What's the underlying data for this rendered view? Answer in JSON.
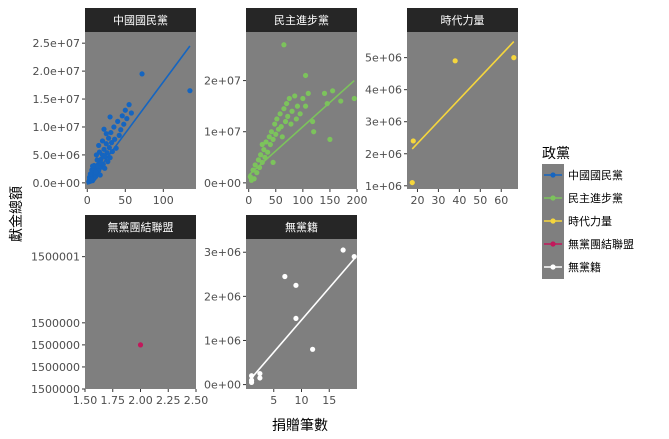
{
  "axis": {
    "xlabel": "捐贈筆數",
    "ylabel": "獻金總額"
  },
  "legend": {
    "title": "政黨",
    "position": "right"
  },
  "colors": {
    "panel_bg": "#7f7f7f",
    "strip_bg": "#262626",
    "中國國民黨": "#1565c0",
    "民主進步黨": "#7cc35c",
    "時代力量": "#f5d63d",
    "無黨團結聯盟": "#c2185b",
    "無黨籍": "#ffffff"
  },
  "chart_data": [
    {
      "type": "scatter",
      "title": "中國國民黨",
      "series": [
        {
          "name": "中國國民黨"
        }
      ],
      "xlim": [
        -3,
        143
      ],
      "ylim": [
        -1100000,
        27000000
      ],
      "xticks": [
        {
          "v": 0,
          "label": "0"
        },
        {
          "v": 50,
          "label": "50"
        },
        {
          "v": 100,
          "label": "100"
        }
      ],
      "yticks": [
        {
          "v": 0,
          "label": "0.0e+00"
        },
        {
          "v": 5000000,
          "label": "5.0e+06"
        },
        {
          "v": 10000000,
          "label": "1.0e+07"
        },
        {
          "v": 15000000,
          "label": "1.5e+07"
        },
        {
          "v": 20000000,
          "label": "2.0e+07"
        },
        {
          "v": 25000000,
          "label": "2.5e+07"
        }
      ],
      "trend": [
        [
          0,
          -300000
        ],
        [
          135,
          24500000
        ]
      ],
      "points": [
        [
          2,
          200000
        ],
        [
          3,
          600000
        ],
        [
          4,
          300000
        ],
        [
          5,
          900000
        ],
        [
          6,
          1200000
        ],
        [
          7,
          400000
        ],
        [
          8,
          1500000
        ],
        [
          9,
          800000
        ],
        [
          10,
          2000000
        ],
        [
          11,
          1100000
        ],
        [
          12,
          2500000
        ],
        [
          13,
          1700000
        ],
        [
          14,
          3200000
        ],
        [
          15,
          2200000
        ],
        [
          16,
          3700000
        ],
        [
          17,
          1400000
        ],
        [
          18,
          4200000
        ],
        [
          19,
          2800000
        ],
        [
          20,
          5000000
        ],
        [
          21,
          3300000
        ],
        [
          22,
          6000000
        ],
        [
          23,
          2600000
        ],
        [
          24,
          4600000
        ],
        [
          25,
          7000000
        ],
        [
          26,
          5400000
        ],
        [
          27,
          3800000
        ],
        [
          28,
          8000000
        ],
        [
          29,
          6300000
        ],
        [
          30,
          4500000
        ],
        [
          31,
          9000000
        ],
        [
          32,
          7200000
        ],
        [
          33,
          5600000
        ],
        [
          35,
          10000000
        ],
        [
          36,
          7800000
        ],
        [
          38,
          6200000
        ],
        [
          40,
          11000000
        ],
        [
          42,
          8500000
        ],
        [
          44,
          9500000
        ],
        [
          46,
          12000000
        ],
        [
          48,
          10500000
        ],
        [
          50,
          13000000
        ],
        [
          52,
          11500000
        ],
        [
          55,
          14000000
        ],
        [
          58,
          12500000
        ],
        [
          72,
          19500000
        ],
        [
          135,
          16500000
        ],
        [
          3,
          1000000
        ],
        [
          5,
          500000
        ],
        [
          6,
          2300000
        ],
        [
          8,
          2700000
        ],
        [
          9,
          3100000
        ],
        [
          11,
          1900000
        ],
        [
          13,
          4100000
        ],
        [
          14,
          3000000
        ],
        [
          16,
          5500000
        ],
        [
          18,
          3500000
        ],
        [
          20,
          7500000
        ],
        [
          23,
          4800000
        ],
        [
          25,
          8800000
        ],
        [
          30,
          11800000
        ],
        [
          12,
          5000000
        ],
        [
          7,
          3000000
        ],
        [
          4,
          1600000
        ],
        [
          15,
          6700000
        ],
        [
          22,
          9600000
        ]
      ]
    },
    {
      "type": "scatter",
      "title": "民主進步黨",
      "series": [
        {
          "name": "民主進步黨"
        }
      ],
      "xlim": [
        -5,
        200
      ],
      "ylim": [
        -1200000,
        29500000
      ],
      "xticks": [
        {
          "v": 0,
          "label": "0"
        },
        {
          "v": 50,
          "label": "50"
        },
        {
          "v": 100,
          "label": "100"
        },
        {
          "v": 150,
          "label": "150"
        },
        {
          "v": 200,
          "label": "200"
        }
      ],
      "yticks": [
        {
          "v": 0,
          "label": "0e+00"
        },
        {
          "v": 10000000,
          "label": "1e+07"
        },
        {
          "v": 20000000,
          "label": "2e+07"
        }
      ],
      "trend": [
        [
          0,
          1500000
        ],
        [
          195,
          20000000
        ]
      ],
      "points": [
        [
          3,
          1200000
        ],
        [
          5,
          500000
        ],
        [
          8,
          2500000
        ],
        [
          10,
          800000
        ],
        [
          12,
          3500000
        ],
        [
          15,
          2000000
        ],
        [
          18,
          4500000
        ],
        [
          20,
          3000000
        ],
        [
          22,
          5500000
        ],
        [
          25,
          4000000
        ],
        [
          28,
          6500000
        ],
        [
          30,
          5000000
        ],
        [
          32,
          8000000
        ],
        [
          35,
          6000000
        ],
        [
          38,
          9000000
        ],
        [
          40,
          7500000
        ],
        [
          42,
          10000000
        ],
        [
          45,
          8500000
        ],
        [
          48,
          11500000
        ],
        [
          50,
          9500000
        ],
        [
          52,
          12500000
        ],
        [
          55,
          10500000
        ],
        [
          58,
          13500000
        ],
        [
          60,
          11000000
        ],
        [
          62,
          9000000
        ],
        [
          65,
          14500000
        ],
        [
          68,
          12000000
        ],
        [
          70,
          15500000
        ],
        [
          72,
          13000000
        ],
        [
          75,
          16500000
        ],
        [
          78,
          11500000
        ],
        [
          80,
          14000000
        ],
        [
          85,
          17000000
        ],
        [
          88,
          12500000
        ],
        [
          90,
          15000000
        ],
        [
          95,
          13500000
        ],
        [
          100,
          16500000
        ],
        [
          105,
          15000000
        ],
        [
          110,
          17500000
        ],
        [
          118,
          12000000
        ],
        [
          120,
          10000000
        ],
        [
          140,
          17500000
        ],
        [
          145,
          15500000
        ],
        [
          150,
          8500000
        ],
        [
          155,
          18000000
        ],
        [
          170,
          16000000
        ],
        [
          195,
          16500000
        ],
        [
          105,
          21000000
        ],
        [
          65,
          27000000
        ],
        [
          25,
          7500000
        ],
        [
          45,
          4000000
        ]
      ]
    },
    {
      "type": "scatter",
      "title": "時代力量",
      "series": [
        {
          "name": "時代力量"
        }
      ],
      "xlim": [
        15,
        68
      ],
      "ylim": [
        900000,
        5800000
      ],
      "xticks": [
        {
          "v": 20,
          "label": "20"
        },
        {
          "v": 30,
          "label": "30"
        },
        {
          "v": 40,
          "label": "40"
        },
        {
          "v": 50,
          "label": "50"
        },
        {
          "v": 60,
          "label": "60"
        }
      ],
      "yticks": [
        {
          "v": 1000000,
          "label": "1e+06"
        },
        {
          "v": 2000000,
          "label": "2e+06"
        },
        {
          "v": 3000000,
          "label": "3e+06"
        },
        {
          "v": 4000000,
          "label": "4e+06"
        },
        {
          "v": 5000000,
          "label": "5e+06"
        }
      ],
      "trend": [
        [
          17.5,
          2150000
        ],
        [
          66,
          5500000
        ]
      ],
      "points": [
        [
          17.5,
          1100000
        ],
        [
          18,
          2400000
        ],
        [
          38,
          4900000
        ],
        [
          66,
          5000000
        ]
      ]
    },
    {
      "type": "scatter",
      "title": "無黨團結聯盟",
      "series": [
        {
          "name": "無黨團結聯盟"
        }
      ],
      "xlim": [
        1.5,
        2.5
      ],
      "ylim": [
        1499999.5,
        1500001.2
      ],
      "xticks": [
        {
          "v": 1.5,
          "label": "1.50"
        },
        {
          "v": 1.75,
          "label": "1.75"
        },
        {
          "v": 2.0,
          "label": "2.00"
        },
        {
          "v": 2.25,
          "label": "2.25"
        },
        {
          "v": 2.5,
          "label": "2.50"
        }
      ],
      "yticks": [
        {
          "v": 1499999.5,
          "label": "1500000"
        },
        {
          "v": 1499999.75,
          "label": "1500000"
        },
        {
          "v": 1500000.0,
          "label": "1500000"
        },
        {
          "v": 1500000.25,
          "label": "1500000"
        },
        {
          "v": 1500001.0,
          "label": "1500001"
        }
      ],
      "trend": [],
      "points": [
        [
          2.0,
          1500000.0
        ]
      ]
    },
    {
      "type": "scatter",
      "title": "無黨籍",
      "series": [
        {
          "name": "無黨籍"
        }
      ],
      "xlim": [
        0,
        20
      ],
      "ylim": [
        -100000,
        3300000
      ],
      "xticks": [
        {
          "v": 5,
          "label": "5"
        },
        {
          "v": 10,
          "label": "10"
        },
        {
          "v": 15,
          "label": "15"
        }
      ],
      "yticks": [
        {
          "v": 0,
          "label": "0e+00"
        },
        {
          "v": 1000000,
          "label": "1e+06"
        },
        {
          "v": 2000000,
          "label": "2e+06"
        },
        {
          "v": 3000000,
          "label": "3e+06"
        }
      ],
      "trend": [
        [
          1,
          150000
        ],
        [
          19.5,
          2850000
        ]
      ],
      "points": [
        [
          1,
          50000
        ],
        [
          1,
          100000
        ],
        [
          1,
          200000
        ],
        [
          2.5,
          150000
        ],
        [
          2.5,
          250000
        ],
        [
          7,
          2450000
        ],
        [
          9,
          2250000
        ],
        [
          9,
          1500000
        ],
        [
          12,
          800000
        ],
        [
          17.5,
          3050000
        ],
        [
          19.5,
          2900000
        ]
      ]
    }
  ]
}
